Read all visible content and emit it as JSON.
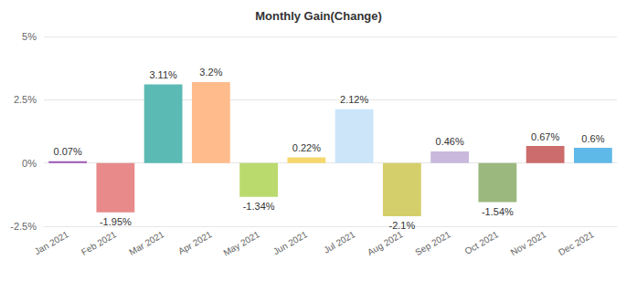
{
  "chart_data": {
    "type": "bar",
    "title": "Monthly Gain(Change)",
    "categories": [
      "Jan 2021",
      "Feb 2021",
      "Mar 2021",
      "Apr 2021",
      "May 2021",
      "Jun 2021",
      "Jul 2021",
      "Aug 2021",
      "Sep 2021",
      "Oct 2021",
      "Nov 2021",
      "Dec 2021"
    ],
    "values": [
      0.07,
      -1.95,
      3.11,
      3.2,
      -1.34,
      0.22,
      2.12,
      -2.1,
      0.46,
      -1.54,
      0.67,
      0.6
    ],
    "value_labels": [
      "0.07%",
      "-1.95%",
      "3.11%",
      "3.2%",
      "-1.34%",
      "0.22%",
      "2.12%",
      "-2.1%",
      "0.46%",
      "-1.54%",
      "0.67%",
      "0.6%"
    ],
    "colors": [
      "#9b59b6",
      "#e88a8a",
      "#5bbab3",
      "#ffbb8c",
      "#bada6e",
      "#f5d76e",
      "#cce5f9",
      "#d4cf6a",
      "#c9b8dc",
      "#9bb87e",
      "#cc6c6c",
      "#5fb9e8"
    ],
    "ylim": [
      -2.5,
      5
    ],
    "yticks": [
      {
        "value": -2.5,
        "label": "-2.5%"
      },
      {
        "value": 0,
        "label": "0%"
      },
      {
        "value": 2.5,
        "label": "2.5%"
      },
      {
        "value": 5,
        "label": "5%"
      }
    ],
    "grid": true,
    "data_labels": true
  }
}
